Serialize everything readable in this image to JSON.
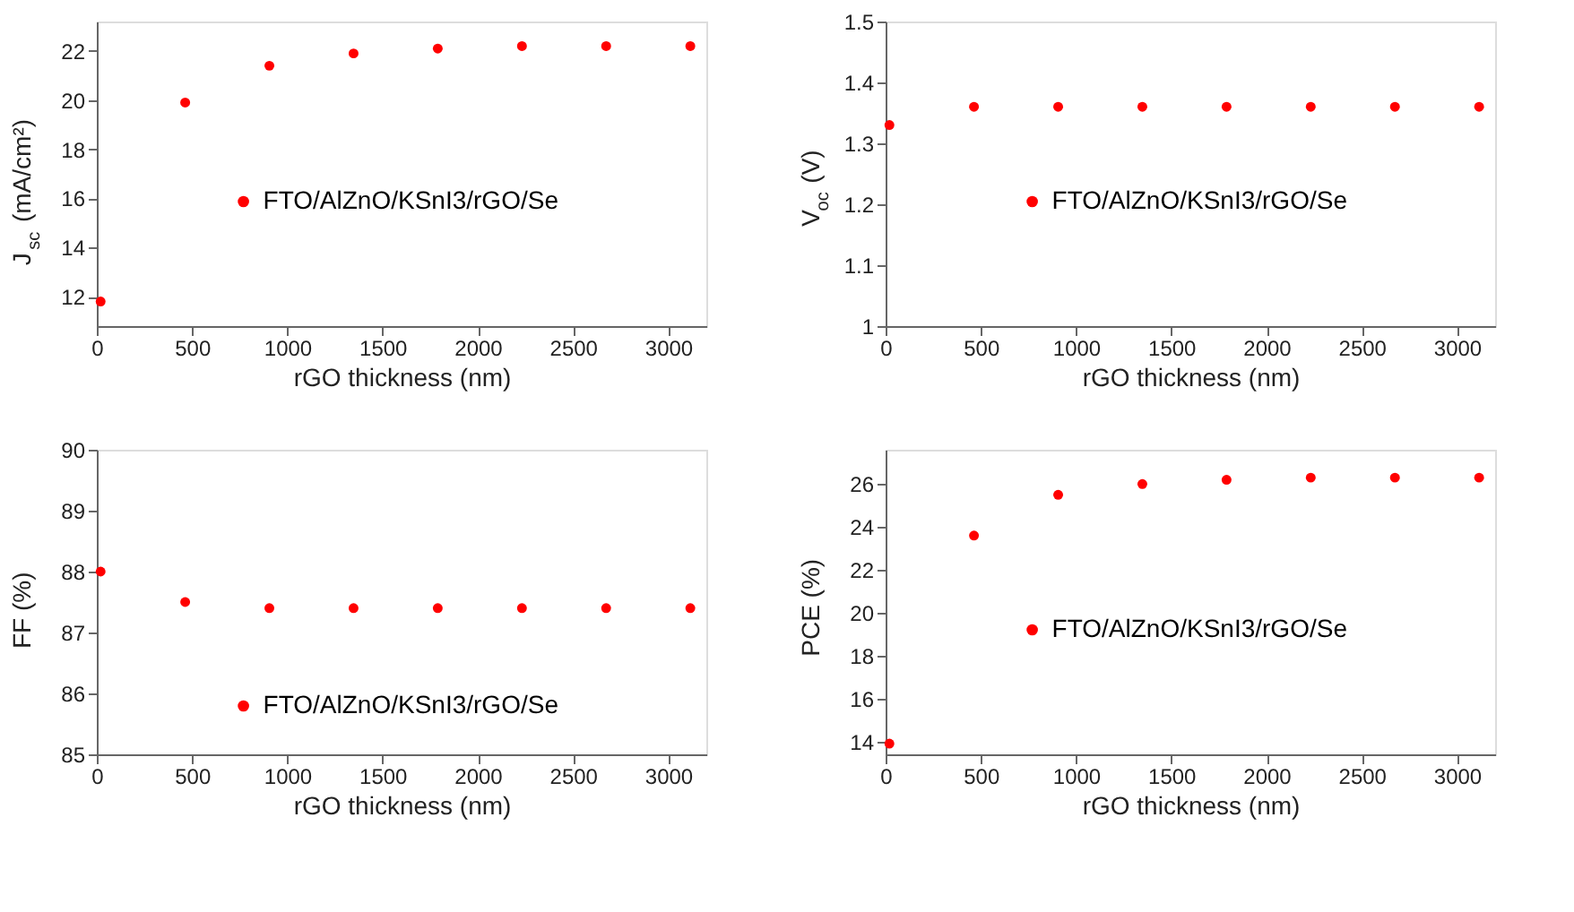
{
  "chart_data": [
    {
      "type": "scatter",
      "xlabel": "rGO thickness (nm)",
      "ylabel": "J$_{sc}$ (mA/cm²)",
      "x": [
        20,
        464,
        906,
        1348,
        1790,
        2232,
        2674,
        3116
      ],
      "xlim": [
        0,
        3200
      ],
      "xticks": [
        0,
        500,
        1000,
        1500,
        2000,
        2500,
        3000
      ],
      "ylim": [
        10.8,
        23.2
      ],
      "yticks": [
        12,
        14,
        16,
        18,
        20,
        22
      ],
      "marker": "circle",
      "grid": false,
      "legend": "left",
      "series": [
        {
          "name": "FTO/AlZnO/KSnI3/rGO/Se",
          "color": "#ff0000",
          "values": [
            11.8,
            19.9,
            21.4,
            21.9,
            22.1,
            22.2,
            22.2,
            22.2
          ]
        }
      ]
    },
    {
      "type": "scatter",
      "xlabel": "rGO thickness (nm)",
      "ylabel": "V$_{oc}$ (V)",
      "x": [
        20,
        464,
        906,
        1348,
        1790,
        2232,
        2674,
        3116
      ],
      "xlim": [
        0,
        3200
      ],
      "xticks": [
        0,
        500,
        1000,
        1500,
        2000,
        2500,
        3000
      ],
      "ylim": [
        1,
        1.5
      ],
      "yticks": [
        1,
        1.1,
        1.2,
        1.3,
        1.4,
        1.5
      ],
      "marker": "circle",
      "grid": false,
      "legend": "left",
      "series": [
        {
          "name": "FTO/AlZnO/KSnI3/rGO/Se",
          "color": "#ff0000",
          "values": [
            1.33,
            1.36,
            1.36,
            1.36,
            1.36,
            1.36,
            1.36,
            1.36
          ]
        }
      ]
    },
    {
      "type": "scatter",
      "xlabel": "rGO thickness (nm)",
      "ylabel": "FF (%)",
      "x": [
        20,
        464,
        906,
        1348,
        1790,
        2232,
        2674,
        3116
      ],
      "xlim": [
        0,
        3200
      ],
      "xticks": [
        0,
        500,
        1000,
        1500,
        2000,
        2500,
        3000
      ],
      "ylim": [
        85,
        90
      ],
      "yticks": [
        85,
        86,
        87,
        88,
        89,
        90
      ],
      "marker": "circle",
      "grid": false,
      "legend": "bottom left",
      "series": [
        {
          "name": "FTO/AlZnO/KSnI3/rGO/Se",
          "color": "#ff0000",
          "values": [
            88.0,
            87.5,
            87.4,
            87.4,
            87.4,
            87.4,
            87.4,
            87.4
          ]
        }
      ]
    },
    {
      "type": "scatter",
      "xlabel": "rGO thickness (nm)",
      "ylabel": "PCE (%)",
      "x": [
        20,
        464,
        906,
        1348,
        1790,
        2232,
        2674,
        3116
      ],
      "xlim": [
        0,
        3200
      ],
      "xticks": [
        0,
        500,
        1000,
        1500,
        2000,
        2500,
        3000
      ],
      "ylim": [
        13.4,
        27.6
      ],
      "yticks": [
        14,
        16,
        18,
        20,
        22,
        24,
        26
      ],
      "marker": "circle",
      "grid": false,
      "legend": "left",
      "series": [
        {
          "name": "FTO/AlZnO/KSnI3/rGO/Se",
          "color": "#ff0000",
          "values": [
            13.9,
            23.6,
            25.5,
            26.0,
            26.2,
            26.3,
            26.3,
            26.3
          ]
        }
      ]
    }
  ]
}
